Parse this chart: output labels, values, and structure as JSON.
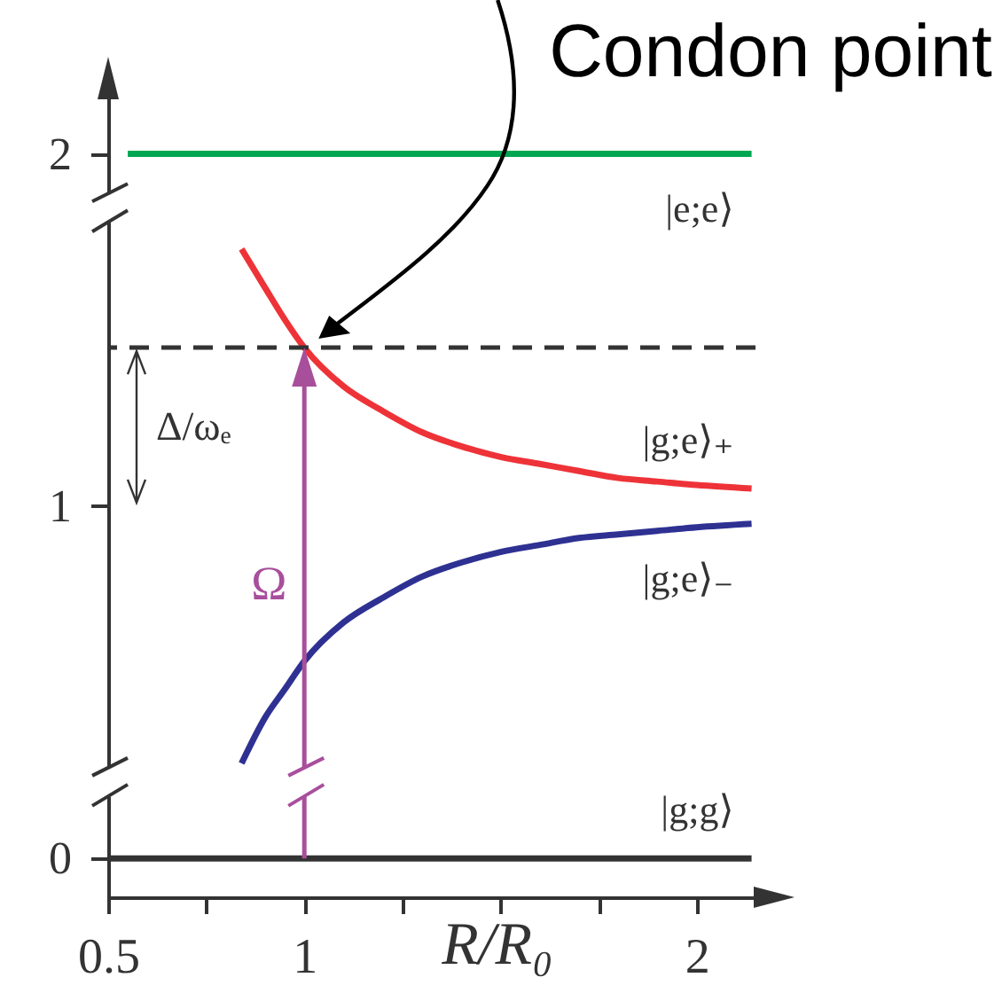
{
  "chart_data": {
    "type": "line",
    "xlabel": "R/R₀",
    "xlim": [
      0.5,
      2.15
    ],
    "xticks": [
      0.5,
      {
        "value": 0.75,
        "label": null
      },
      1,
      {
        "value": 1.25,
        "label": null
      },
      {
        "value": 1.5,
        "label": null
      },
      {
        "value": 1.75,
        "label": null
      },
      2
    ],
    "ylim": [
      -0.11,
      2.16
    ],
    "yticks": [
      0,
      1,
      2
    ],
    "grid": false,
    "series": [
      {
        "name": "|g;g⟩",
        "color": "#333333",
        "x": [
          0.5,
          2.14
        ],
        "values": [
          0,
          0
        ]
      },
      {
        "name": "|g;e⟩₋",
        "color": "#2e3192",
        "x": [
          0.84,
          0.9,
          0.95,
          1,
          1.1,
          1.2,
          1.3,
          1.4,
          1.5,
          1.6,
          1.7,
          1.8,
          1.9,
          2,
          2.14
        ],
        "values": [
          0.27,
          0.4,
          0.48,
          0.56,
          0.67,
          0.74,
          0.8,
          0.84,
          0.87,
          0.89,
          0.91,
          0.92,
          0.93,
          0.94,
          0.95
        ]
      },
      {
        "name": "|g;e⟩₊",
        "color": "#ee3338",
        "x": [
          0.84,
          0.9,
          0.95,
          1,
          1.1,
          1.2,
          1.3,
          1.4,
          1.5,
          1.6,
          1.7,
          1.8,
          1.9,
          2,
          2.14
        ],
        "values": [
          1.73,
          1.62,
          1.53,
          1.45,
          1.34,
          1.27,
          1.21,
          1.17,
          1.14,
          1.12,
          1.1,
          1.08,
          1.07,
          1.06,
          1.05
        ]
      },
      {
        "name": "|e;e⟩",
        "color": "#00a651",
        "x": [
          0.55,
          2.14
        ],
        "values": [
          2,
          2
        ]
      }
    ],
    "ref_lines": [
      {
        "axis": "y",
        "value": 1.45,
        "color": "#333333",
        "line_style": "dashed"
      }
    ],
    "annotations": [
      "Condon point",
      "Ω",
      "Δ/ωₑ"
    ]
  }
}
